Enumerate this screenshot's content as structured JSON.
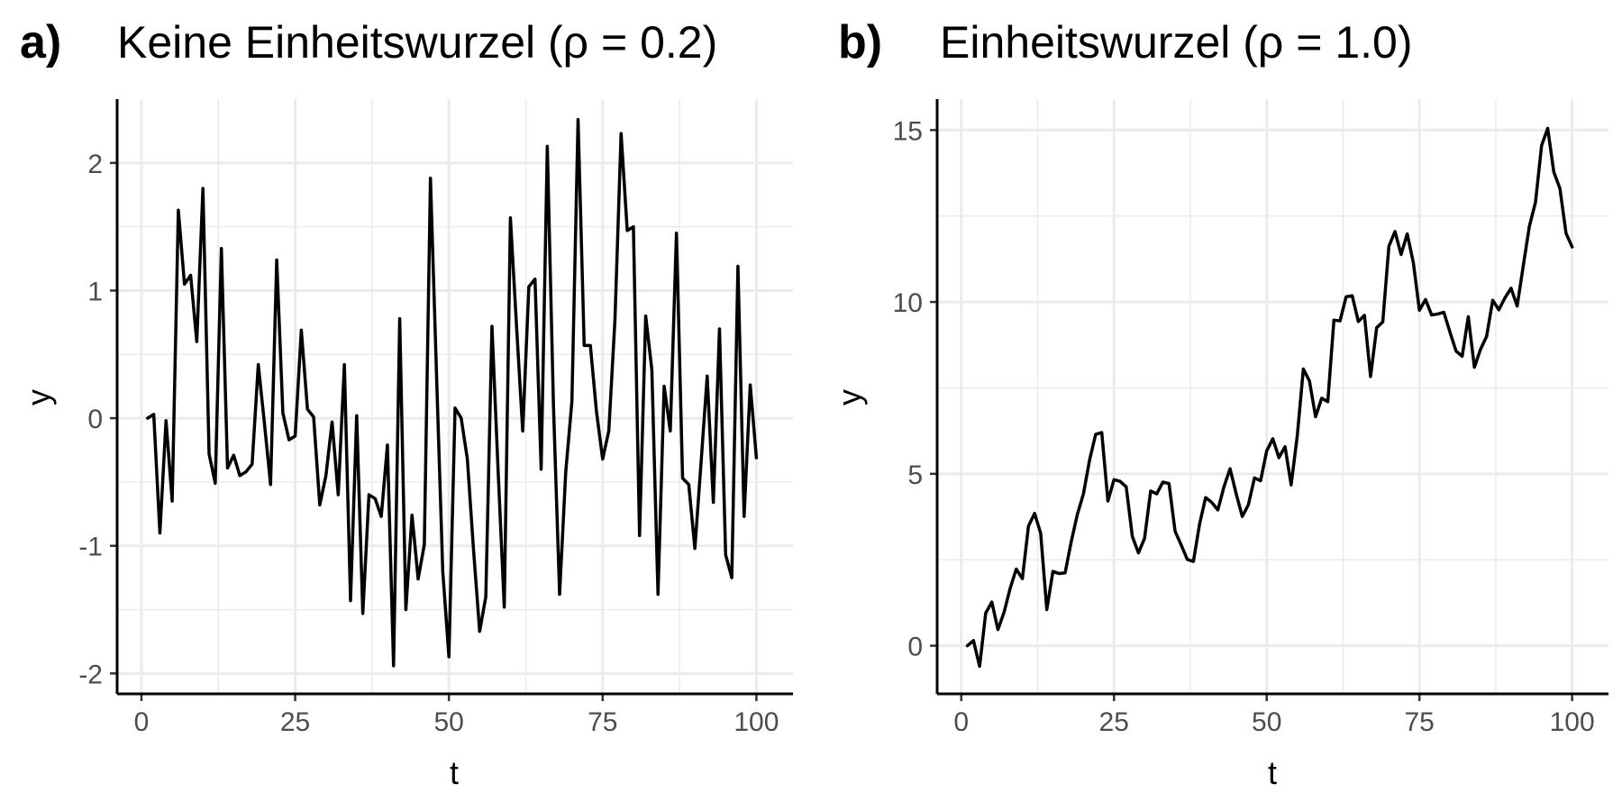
{
  "chart_data": [
    {
      "type": "line",
      "panel_tag": "a)",
      "title": "Keine Einheitswurzel (ρ = 0.2)",
      "xlabel": "t",
      "ylabel": "y",
      "xlim": [
        -3.95,
        105.95
      ],
      "ylim": [
        -2.16,
        2.5
      ],
      "xticks": [
        0,
        25,
        50,
        75,
        100
      ],
      "xtick_labels": [
        "0",
        "25",
        "50",
        "75",
        "100"
      ],
      "yticks": [
        -2,
        -1,
        0,
        1,
        2
      ],
      "ytick_labels": [
        "-2",
        "-1",
        "0",
        "1",
        "2"
      ],
      "grid": true,
      "x": [
        1,
        2,
        3,
        4,
        5,
        6,
        7,
        8,
        9,
        10,
        11,
        12,
        13,
        14,
        15,
        16,
        17,
        18,
        19,
        20,
        21,
        22,
        23,
        24,
        25,
        26,
        27,
        28,
        29,
        30,
        31,
        32,
        33,
        34,
        35,
        36,
        37,
        38,
        39,
        40,
        41,
        42,
        43,
        44,
        45,
        46,
        47,
        48,
        49,
        50,
        51,
        52,
        53,
        54,
        55,
        56,
        57,
        58,
        59,
        60,
        61,
        62,
        63,
        64,
        65,
        66,
        67,
        68,
        69,
        70,
        71,
        72,
        73,
        74,
        75,
        76,
        77,
        78,
        79,
        80,
        81,
        82,
        83,
        84,
        85,
        86,
        87,
        88,
        89,
        90,
        91,
        92,
        93,
        94,
        95,
        96,
        97,
        98,
        99,
        100
      ],
      "series": [
        {
          "values": [
            0,
            0.03,
            -0.9,
            -0.02,
            -0.65,
            1.63,
            1.05,
            1.12,
            0.6,
            1.8,
            -0.28,
            -0.51,
            1.33,
            -0.39,
            -0.29,
            -0.45,
            -0.42,
            -0.36,
            0.42,
            -0.04,
            -0.52,
            1.24,
            0.04,
            -0.17,
            -0.14,
            0.69,
            0.07,
            0.01,
            -0.68,
            -0.45,
            -0.03,
            -0.6,
            0.42,
            -1.43,
            0.02,
            -1.53,
            -0.6,
            -0.63,
            -0.77,
            -0.21,
            -1.94,
            0.78,
            -1.5,
            -0.76,
            -1.26,
            -0.99,
            1.88,
            0.32,
            -1.2,
            -1.87,
            0.08,
            0,
            -0.32,
            -1.03,
            -1.67,
            -1.4,
            0.72,
            -0.41,
            -1.48,
            1.57,
            0.72,
            -0.1,
            1.03,
            1.09,
            -0.4,
            2.13,
            0.1,
            -1.38,
            -0.42,
            0.13,
            2.34,
            0.57,
            0.57,
            0.05,
            -0.32,
            -0.1,
            0.77,
            2.23,
            1.47,
            1.5,
            -0.92,
            0.8,
            0.38,
            -1.38,
            0.25,
            -0.1,
            1.45,
            -0.47,
            -0.52,
            -1.02,
            -0.35,
            0.33,
            -0.66,
            0.7,
            -1.07,
            -1.25,
            1.19,
            -0.77,
            0.26,
            -0.31
          ]
        }
      ]
    },
    {
      "type": "line",
      "panel_tag": "b)",
      "title": "Einheitswurzel (ρ = 1.0)",
      "xlabel": "t",
      "ylabel": "y",
      "xlim": [
        -3.95,
        105.95
      ],
      "ylim": [
        -1.4,
        15.9
      ],
      "xticks": [
        0,
        25,
        50,
        75,
        100
      ],
      "xtick_labels": [
        "0",
        "25",
        "50",
        "75",
        "100"
      ],
      "yticks": [
        0,
        5,
        10,
        15
      ],
      "ytick_labels": [
        "0",
        "5",
        "10",
        "15"
      ],
      "grid": true,
      "x": [
        1,
        2,
        3,
        4,
        5,
        6,
        7,
        8,
        9,
        10,
        11,
        12,
        13,
        14,
        15,
        16,
        17,
        18,
        19,
        20,
        21,
        22,
        23,
        24,
        25,
        26,
        27,
        28,
        29,
        30,
        31,
        32,
        33,
        34,
        35,
        36,
        37,
        38,
        39,
        40,
        41,
        42,
        43,
        44,
        45,
        46,
        47,
        48,
        49,
        50,
        51,
        52,
        53,
        54,
        55,
        56,
        57,
        58,
        59,
        60,
        61,
        62,
        63,
        64,
        65,
        66,
        67,
        68,
        69,
        70,
        71,
        72,
        73,
        74,
        75,
        76,
        77,
        78,
        79,
        80,
        81,
        82,
        83,
        84,
        85,
        86,
        87,
        88,
        89,
        90,
        91,
        92,
        93,
        94,
        95,
        96,
        97,
        98,
        99,
        100
      ],
      "series": [
        {
          "values": [
            0,
            0.15,
            -0.6,
            0.95,
            1.27,
            0.47,
            0.97,
            1.67,
            2.23,
            1.95,
            3.48,
            3.85,
            3.27,
            1.05,
            2.16,
            2.1,
            2.12,
            3.03,
            3.82,
            4.42,
            5.4,
            6.15,
            6.2,
            4.21,
            4.83,
            4.78,
            4.62,
            3.18,
            2.7,
            3.12,
            4.5,
            4.42,
            4.76,
            4.72,
            3.33,
            2.93,
            2.51,
            2.45,
            3.53,
            4.31,
            4.17,
            3.95,
            4.62,
            5.15,
            4.42,
            3.76,
            4.1,
            4.88,
            4.8,
            5.67,
            6.02,
            5.47,
            5.79,
            4.68,
            6.1,
            8.05,
            7.7,
            6.66,
            7.2,
            7.1,
            9.47,
            9.45,
            10.15,
            10.18,
            9.43,
            9.61,
            7.83,
            9.25,
            9.42,
            11.62,
            12.05,
            11.38,
            11.98,
            11.15,
            9.76,
            10.07,
            9.62,
            9.65,
            9.7,
            9.12,
            8.57,
            8.42,
            9.57,
            8.1,
            8.62,
            9,
            10.05,
            9.77,
            10.12,
            10.4,
            9.88,
            11.05,
            12.2,
            12.9,
            14.55,
            15.05,
            13.78,
            13.3,
            12,
            11.6
          ]
        }
      ]
    }
  ]
}
